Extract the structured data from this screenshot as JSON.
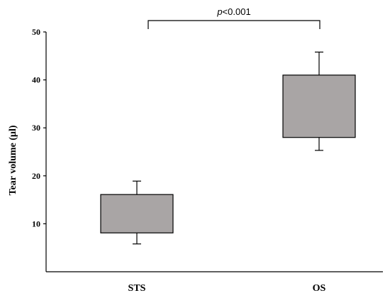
{
  "chart_data": {
    "type": "box",
    "ylabel": "Tear volume (µl)",
    "ylim": [
      0,
      50
    ],
    "yticks": [
      10,
      20,
      30,
      40,
      50
    ],
    "ytick_labels": [
      "10",
      "20",
      "30",
      "40",
      "50"
    ],
    "categories": [
      "STS",
      "OS"
    ],
    "boxes": [
      {
        "category": "STS",
        "whisker_low": 5.8,
        "q1": 8.1,
        "q3": 16.1,
        "whisker_high": 18.9
      },
      {
        "category": "OS",
        "whisker_low": 25.3,
        "q1": 28.0,
        "q3": 41.0,
        "whisker_high": 45.8
      }
    ],
    "box_color": "#a9a5a5",
    "annotation": {
      "p_symbol": "p",
      "p_value": "<0.001"
    },
    "grid": false
  }
}
